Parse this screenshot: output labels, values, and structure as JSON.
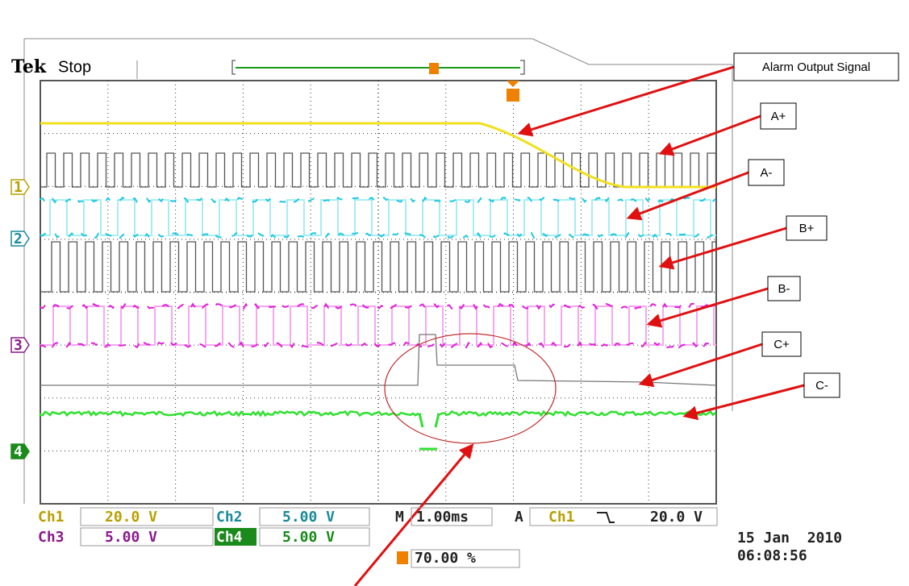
{
  "header": {
    "brand": "Tek",
    "status": "Stop"
  },
  "channel_markers": [
    "1",
    "2",
    "3",
    "4"
  ],
  "readout": {
    "ch1_label": "Ch1",
    "ch1_scale": "20.0 V",
    "ch2_label": "Ch2",
    "ch2_scale": "5.00 V",
    "ch3_label": "Ch3",
    "ch3_scale": "5.00 V",
    "ch4_label": "Ch4",
    "ch4_scale": "5.00 V",
    "timebase_label": "M",
    "timebase": "1.00ms",
    "trigger_label": "A",
    "trigger_source": "Ch1",
    "trigger_level": "20.0 V",
    "trigger_position": "70.00 %",
    "date": "15 Jan  2010",
    "time": "06:08:56"
  },
  "annotations": [
    "Alarm Output Signal",
    "A+",
    "A-",
    "B+",
    "B-",
    "C+",
    "C-"
  ]
}
